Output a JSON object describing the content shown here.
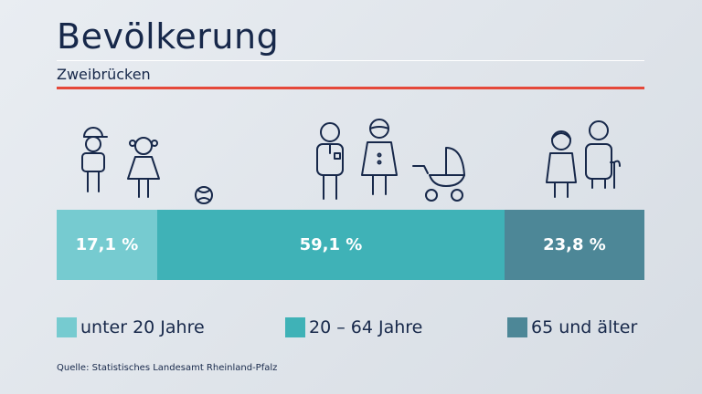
{
  "header": {
    "title": "Bevölkerung",
    "subtitle": "Zweibrücken"
  },
  "chart_data": {
    "type": "bar",
    "orientation": "stacked-horizontal",
    "categories": [
      "unter 20 Jahre",
      "20 – 64 Jahre",
      "65 und älter"
    ],
    "values": [
      17.1,
      59.1,
      23.8
    ],
    "labels": [
      "17,1 %",
      "59,1 %",
      "23,8 %"
    ],
    "colors": [
      "#76cbd0",
      "#3fb2b7",
      "#4d8797"
    ],
    "legend_position": "bottom",
    "grid": false
  },
  "icons": [
    "boy-icon",
    "girl-icon",
    "ball-icon",
    "man-icon",
    "woman-icon",
    "stroller-icon",
    "old-woman-icon",
    "old-man-icon"
  ],
  "footer": {
    "source": "Quelle: Statistisches Landesamt Rheinland-Pfalz"
  }
}
